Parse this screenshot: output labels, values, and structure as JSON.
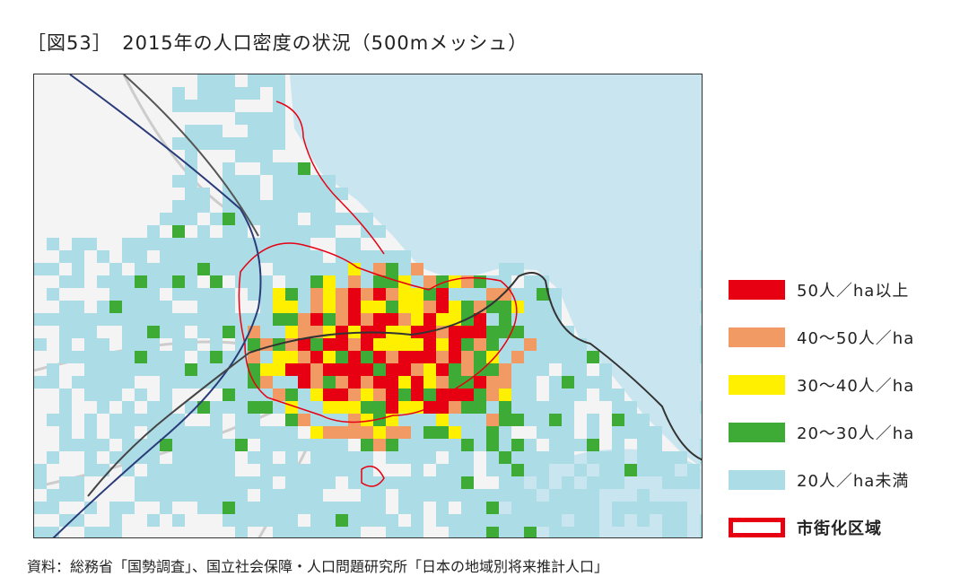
{
  "figure": {
    "title": "［図53］　2015年の人口密度の状況（500mメッシュ）",
    "source": "資料：総務省「国勢調査」、国立社会保障・人口問題研究所「日本の地域別将来推計人口」"
  },
  "map": {
    "sea_color": "#c9e6f0",
    "land_color": "#f4f4f4",
    "mesh_cell_size": "500m"
  },
  "legend": {
    "items": [
      {
        "label": "50人／ha以上",
        "color": "#e60012",
        "type": "fill"
      },
      {
        "label": "40〜50人／ha",
        "color": "#f29a63",
        "type": "fill"
      },
      {
        "label": "30〜40人／ha",
        "color": "#fff000",
        "type": "fill"
      },
      {
        "label": "20〜30人／ha",
        "color": "#3eab37",
        "type": "fill"
      },
      {
        "label": "20人／ha未満",
        "color": "#acdce6",
        "type": "fill"
      },
      {
        "label": "市街化区域",
        "color": "#e60012",
        "type": "outline"
      }
    ]
  }
}
